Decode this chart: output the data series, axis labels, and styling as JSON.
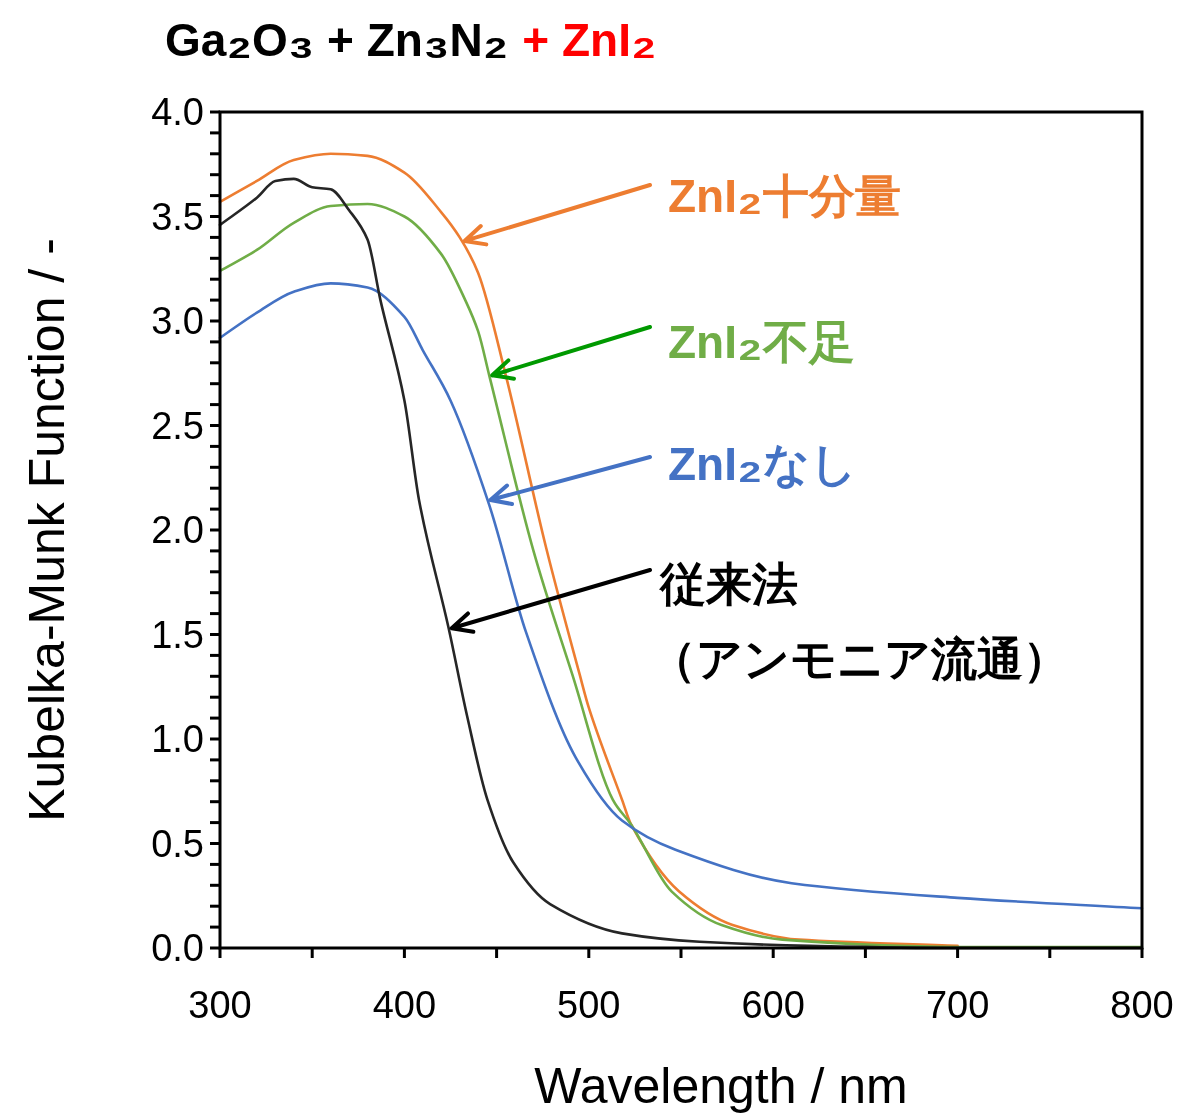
{
  "chart_data": {
    "type": "line",
    "title": "Ga₂O₃ + Zn₃N₂",
    "subtitle": "+ ZnI₂",
    "xlabel": "Wavelength / nm",
    "ylabel": "Kubelka-Munk Function / -",
    "xlim": [
      300,
      800
    ],
    "ylim": [
      0,
      4.0
    ],
    "xticks": [
      300,
      {
        "value": 350,
        "label": null
      },
      400,
      {
        "value": 450,
        "label": null
      },
      500,
      {
        "value": 550,
        "label": null
      },
      600,
      {
        "value": 650,
        "label": null
      },
      700,
      {
        "value": 750,
        "label": null
      },
      800
    ],
    "yticks": [
      {
        "value": 0,
        "label": "0.0"
      },
      {
        "value": 0.1,
        "label": null
      },
      {
        "value": 0.2,
        "label": null
      },
      {
        "value": 0.3,
        "label": null
      },
      {
        "value": 0.4,
        "label": null
      },
      {
        "value": 0.5,
        "label": "0.5"
      },
      {
        "value": 0.6,
        "label": null
      },
      {
        "value": 0.7,
        "label": null
      },
      {
        "value": 0.8,
        "label": null
      },
      {
        "value": 0.9,
        "label": null
      },
      {
        "value": 1.0,
        "label": "1.0"
      },
      {
        "value": 1.1,
        "label": null
      },
      {
        "value": 1.2,
        "label": null
      },
      {
        "value": 1.3,
        "label": null
      },
      {
        "value": 1.4,
        "label": null
      },
      {
        "value": 1.5,
        "label": "1.5"
      },
      {
        "value": 1.6,
        "label": null
      },
      {
        "value": 1.7,
        "label": null
      },
      {
        "value": 1.8,
        "label": null
      },
      {
        "value": 1.9,
        "label": null
      },
      {
        "value": 2.0,
        "label": "2.0"
      },
      {
        "value": 2.1,
        "label": null
      },
      {
        "value": 2.2,
        "label": null
      },
      {
        "value": 2.3,
        "label": null
      },
      {
        "value": 2.4,
        "label": null
      },
      {
        "value": 2.5,
        "label": "2.5"
      },
      {
        "value": 2.6,
        "label": null
      },
      {
        "value": 2.7,
        "label": null
      },
      {
        "value": 2.8,
        "label": null
      },
      {
        "value": 2.9,
        "label": null
      },
      {
        "value": 3.0,
        "label": "3.0"
      },
      {
        "value": 3.1,
        "label": null
      },
      {
        "value": 3.2,
        "label": null
      },
      {
        "value": 3.3,
        "label": null
      },
      {
        "value": 3.4,
        "label": null
      },
      {
        "value": 3.5,
        "label": "3.5"
      },
      {
        "value": 3.6,
        "label": null
      },
      {
        "value": 3.7,
        "label": null
      },
      {
        "value": 3.8,
        "label": null
      },
      {
        "value": 3.9,
        "label": null
      },
      {
        "value": 4.0,
        "label": "4.0"
      }
    ],
    "grid": false,
    "legend": "right",
    "marker": "none",
    "line_style": "solid",
    "series": [
      {
        "name": "ZnI₂十分量",
        "color": "#ed7d31",
        "x": [
          300,
          320,
          340,
          360,
          380,
          400,
          420,
          430,
          440,
          455,
          477,
          495,
          500,
          518,
          523,
          549,
          578,
          614,
          700
        ],
        "values": [
          3.57,
          3.67,
          3.77,
          3.8,
          3.79,
          3.71,
          3.52,
          3.4,
          3.23,
          2.74,
          1.91,
          1.31,
          1.15,
          0.71,
          0.59,
          0.27,
          0.11,
          0.04,
          0.01
        ]
      },
      {
        "name": "ZnI₂不足",
        "color": "#70ad47",
        "x": [
          300,
          320,
          340,
          360,
          380,
          400,
          420,
          433,
          440,
          446,
          470,
          491,
          513,
          523,
          545,
          572,
          605,
          700,
          800
        ],
        "values": [
          3.24,
          3.34,
          3.47,
          3.55,
          3.56,
          3.5,
          3.32,
          3.1,
          2.95,
          2.74,
          1.9,
          1.31,
          0.71,
          0.59,
          0.27,
          0.11,
          0.04,
          0.005,
          0.005
        ]
      },
      {
        "name": "ZnI₂なし",
        "color": "#4472c4",
        "x": [
          300,
          320,
          340,
          360,
          380,
          400,
          410,
          425,
          446,
          466,
          493,
          518,
          547,
          610,
          700,
          800
        ],
        "values": [
          2.92,
          3.04,
          3.14,
          3.18,
          3.16,
          3.02,
          2.86,
          2.62,
          2.12,
          1.51,
          0.91,
          0.61,
          0.47,
          0.31,
          0.24,
          0.19
        ]
      },
      {
        "name": "従来法（アンモニア流通）",
        "color": "#262626",
        "x": [
          300,
          320,
          330,
          340,
          350,
          360,
          370,
          380,
          387,
          400,
          408,
          424,
          434,
          445,
          459,
          479,
          518,
          560,
          620,
          700,
          800
        ],
        "values": [
          3.46,
          3.59,
          3.67,
          3.68,
          3.64,
          3.63,
          3.53,
          3.39,
          3.1,
          2.62,
          2.14,
          1.53,
          1.11,
          0.71,
          0.41,
          0.21,
          0.07,
          0.03,
          0.01,
          0.0,
          0.0
        ]
      }
    ]
  }
}
